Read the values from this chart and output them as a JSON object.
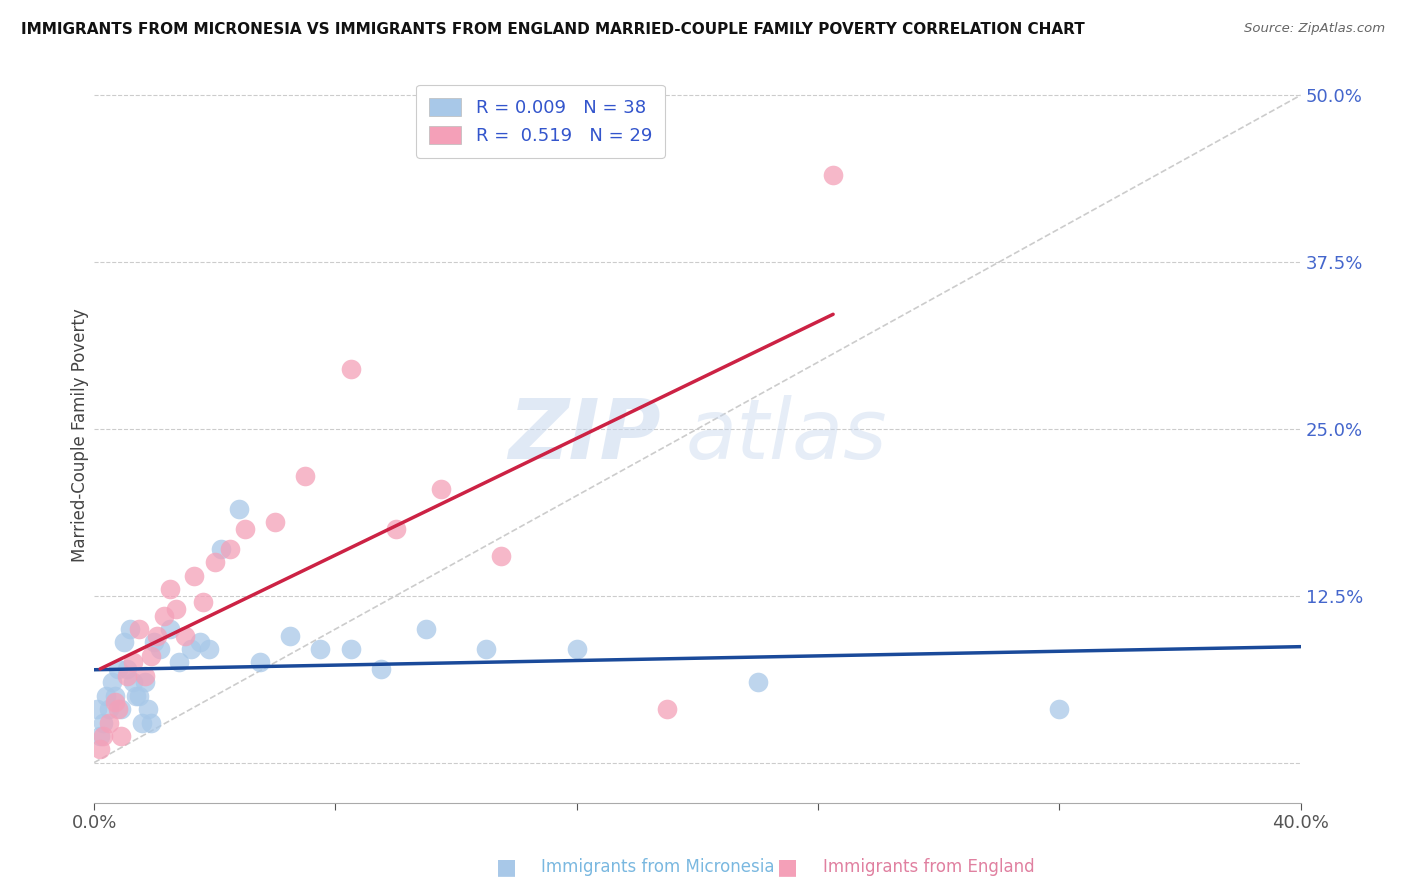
{
  "title": "IMMIGRANTS FROM MICRONESIA VS IMMIGRANTS FROM ENGLAND MARRIED-COUPLE FAMILY POVERTY CORRELATION CHART",
  "source": "Source: ZipAtlas.com",
  "xlabel_micronesia": "Immigrants from Micronesia",
  "xlabel_england": "Immigrants from England",
  "ylabel": "Married-Couple Family Poverty",
  "xmin": 0.0,
  "xmax": 0.4,
  "ymin": -0.03,
  "ymax": 0.52,
  "yticks": [
    0.0,
    0.125,
    0.25,
    0.375,
    0.5
  ],
  "ytick_labels": [
    "",
    "12.5%",
    "25.0%",
    "37.5%",
    "50.0%"
  ],
  "xticks": [
    0.0,
    0.08,
    0.16,
    0.24,
    0.32,
    0.4
  ],
  "xtick_labels": [
    "0.0%",
    "",
    "",
    "",
    "",
    "40.0%"
  ],
  "R_micronesia": 0.009,
  "N_micronesia": 38,
  "R_england": 0.519,
  "N_england": 29,
  "micronesia_color": "#a8c8e8",
  "england_color": "#f4a0b8",
  "trend_micronesia_color": "#1a4a9a",
  "trend_england_color": "#cc2244",
  "watermark_zip": "ZIP",
  "watermark_atlas": "atlas",
  "micronesia_x": [
    0.001,
    0.002,
    0.003,
    0.004,
    0.005,
    0.006,
    0.007,
    0.008,
    0.009,
    0.01,
    0.011,
    0.012,
    0.013,
    0.014,
    0.015,
    0.016,
    0.017,
    0.018,
    0.019,
    0.02,
    0.022,
    0.025,
    0.028,
    0.032,
    0.035,
    0.038,
    0.042,
    0.048,
    0.055,
    0.065,
    0.075,
    0.085,
    0.095,
    0.11,
    0.13,
    0.16,
    0.22,
    0.32
  ],
  "micronesia_y": [
    0.04,
    0.02,
    0.03,
    0.05,
    0.04,
    0.06,
    0.05,
    0.07,
    0.04,
    0.09,
    0.07,
    0.1,
    0.06,
    0.05,
    0.05,
    0.03,
    0.06,
    0.04,
    0.03,
    0.09,
    0.085,
    0.1,
    0.075,
    0.085,
    0.09,
    0.085,
    0.16,
    0.19,
    0.075,
    0.095,
    0.085,
    0.085,
    0.07,
    0.1,
    0.085,
    0.085,
    0.06,
    0.04
  ],
  "england_x": [
    0.002,
    0.003,
    0.005,
    0.007,
    0.008,
    0.009,
    0.011,
    0.013,
    0.015,
    0.017,
    0.019,
    0.021,
    0.023,
    0.025,
    0.027,
    0.03,
    0.033,
    0.036,
    0.04,
    0.045,
    0.05,
    0.06,
    0.07,
    0.085,
    0.1,
    0.115,
    0.135,
    0.19,
    0.245
  ],
  "england_y": [
    0.01,
    0.02,
    0.03,
    0.045,
    0.04,
    0.02,
    0.065,
    0.075,
    0.1,
    0.065,
    0.08,
    0.095,
    0.11,
    0.13,
    0.115,
    0.095,
    0.14,
    0.12,
    0.15,
    0.16,
    0.175,
    0.18,
    0.215,
    0.295,
    0.175,
    0.205,
    0.155,
    0.04,
    0.44
  ]
}
